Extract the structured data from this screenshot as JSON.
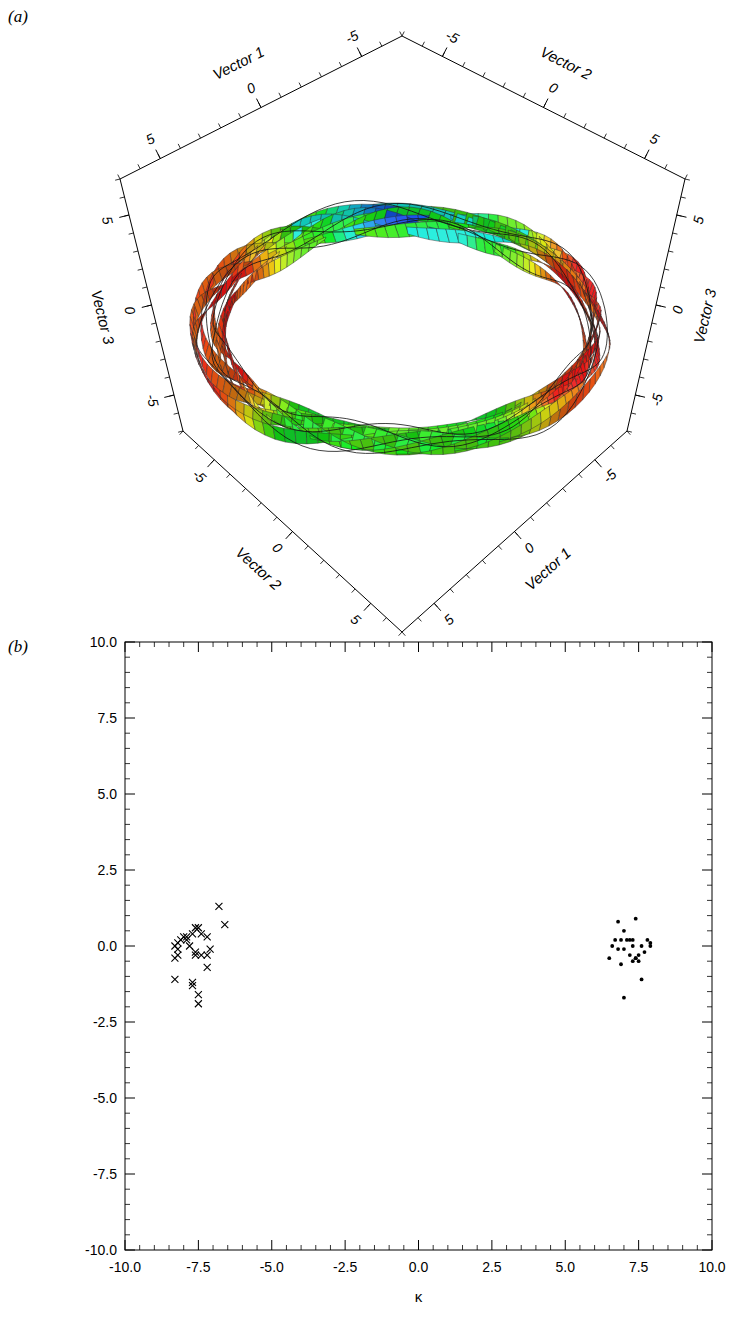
{
  "chart_data": [
    {
      "type": "surface3d",
      "panel_label": "(a)",
      "xlabel": "Vector 1",
      "ylabel": "Vector 2",
      "zlabel": "Vector 3",
      "xlim": [
        -7,
        7
      ],
      "ylim": [
        -7,
        7
      ],
      "zlim": [
        -7,
        7
      ],
      "xticks": [
        -5,
        0,
        5
      ],
      "yticks": [
        -5,
        0,
        5
      ],
      "zticks": [
        -5,
        0,
        5
      ]
    },
    {
      "type": "scatter",
      "panel_label": "(b)",
      "xlabel": "κ",
      "xlim": [
        -10,
        10
      ],
      "ylim": [
        -10,
        10
      ],
      "xticks": [
        {
          "value": -10,
          "label": "-10.0"
        },
        -7.5,
        {
          "value": -5,
          "label": "-5.0"
        },
        -2.5,
        {
          "value": 0,
          "label": "0.0"
        },
        2.5,
        {
          "value": 5,
          "label": "5.0"
        },
        7.5,
        {
          "value": 10,
          "label": "10.0"
        }
      ],
      "yticks": [
        {
          "value": -10,
          "label": "-10.0"
        },
        -7.5,
        {
          "value": -5,
          "label": "-5.0"
        },
        -2.5,
        {
          "value": 0,
          "label": "0.0"
        },
        2.5,
        {
          "value": 5,
          "label": "5.0"
        },
        7.5,
        {
          "value": 10,
          "label": "10.0"
        }
      ],
      "series": [
        {
          "marker": "x",
          "color": "#000000",
          "x": [
            -6.8,
            -6.6,
            -7.6,
            -7.5,
            -7.7,
            -7.4,
            -8.0,
            -7.9,
            -8.1,
            -8.2,
            -7.9,
            -8.3,
            -8.2,
            -7.8,
            -7.2,
            -8.2,
            -8.3,
            -7.6,
            -7.4,
            -7.2,
            -7.1,
            -7.2,
            -8.3,
            -7.7,
            -7.7,
            -7.5,
            -7.5,
            -7.6
          ],
          "values": [
            1.3,
            0.7,
            0.6,
            0.6,
            0.4,
            0.4,
            0.3,
            0.3,
            0.2,
            0.1,
            0.2,
            0.0,
            -0.1,
            0.0,
            0.3,
            -0.3,
            -0.4,
            -0.2,
            -0.3,
            -0.3,
            -0.1,
            -0.7,
            -1.1,
            -1.2,
            -1.3,
            -1.6,
            -1.9,
            -0.3
          ]
        },
        {
          "marker": "dot",
          "color": "#000000",
          "x": [
            6.8,
            7.4,
            7.0,
            6.7,
            6.9,
            7.1,
            7.2,
            7.3,
            7.8,
            6.6,
            6.8,
            7.0,
            7.3,
            7.6,
            7.9,
            7.9,
            7.7,
            7.5,
            7.4,
            7.3,
            7.5,
            7.2,
            6.5,
            6.9,
            7.6,
            7.0,
            7.4
          ],
          "values": [
            0.8,
            0.9,
            0.5,
            0.2,
            0.2,
            0.2,
            0.2,
            0.2,
            0.2,
            0.0,
            -0.1,
            -0.1,
            0.0,
            0.0,
            0.0,
            0.1,
            -0.2,
            -0.3,
            -0.4,
            -0.5,
            -0.5,
            -0.3,
            -0.4,
            -0.6,
            -1.1,
            -1.7,
            -0.4
          ]
        }
      ]
    }
  ]
}
